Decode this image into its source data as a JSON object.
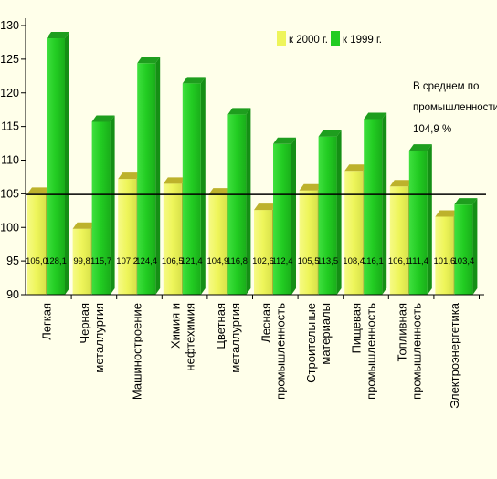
{
  "chart_data": {
    "type": "bar",
    "title": "",
    "xlabel": "",
    "ylabel": "",
    "ylim": [
      90,
      130
    ],
    "yticks": [
      90,
      95,
      100,
      105,
      110,
      115,
      120,
      125,
      130
    ],
    "grid": false,
    "legend_position": "top-right",
    "categories": [
      [
        "Легкая"
      ],
      [
        "Черная",
        "металлургия"
      ],
      [
        "Машиностроение"
      ],
      [
        "Химия и",
        "нефтехимия"
      ],
      [
        "Цветная",
        "металлургия"
      ],
      [
        "Лесная",
        "промышленность"
      ],
      [
        "Строительные",
        "материалы"
      ],
      [
        "Пищевая",
        "промышленность"
      ],
      [
        "Топливная",
        "промышленность"
      ],
      [
        "Электроэнергетика"
      ]
    ],
    "series": [
      {
        "name": "к 2000 г.",
        "color": "#EEF55A",
        "values": [
          105.0,
          99.8,
          107.2,
          106.5,
          104.9,
          102.6,
          105.5,
          108.4,
          106.1,
          101.6
        ],
        "labels": [
          "105,0",
          "99,8",
          "107,2",
          "106,5",
          "104,9",
          "102,6",
          "105,5",
          "108,4",
          "106,1",
          "101,6"
        ]
      },
      {
        "name": "к 1999 г.",
        "color": "#22CC22",
        "values": [
          128.1,
          115.7,
          124.4,
          121.4,
          116.8,
          112.4,
          113.5,
          116.1,
          111.4,
          103.4
        ],
        "labels": [
          "128,1",
          "115,7",
          "124,4",
          "121,4",
          "116,8",
          "112,4",
          "113,5",
          "116,1",
          "111,4",
          "103,4"
        ]
      }
    ],
    "reference_line": {
      "value": 104.9
    },
    "annotation": {
      "lines": [
        "В среднем по",
        "промышленности",
        "104,9 %"
      ]
    }
  }
}
